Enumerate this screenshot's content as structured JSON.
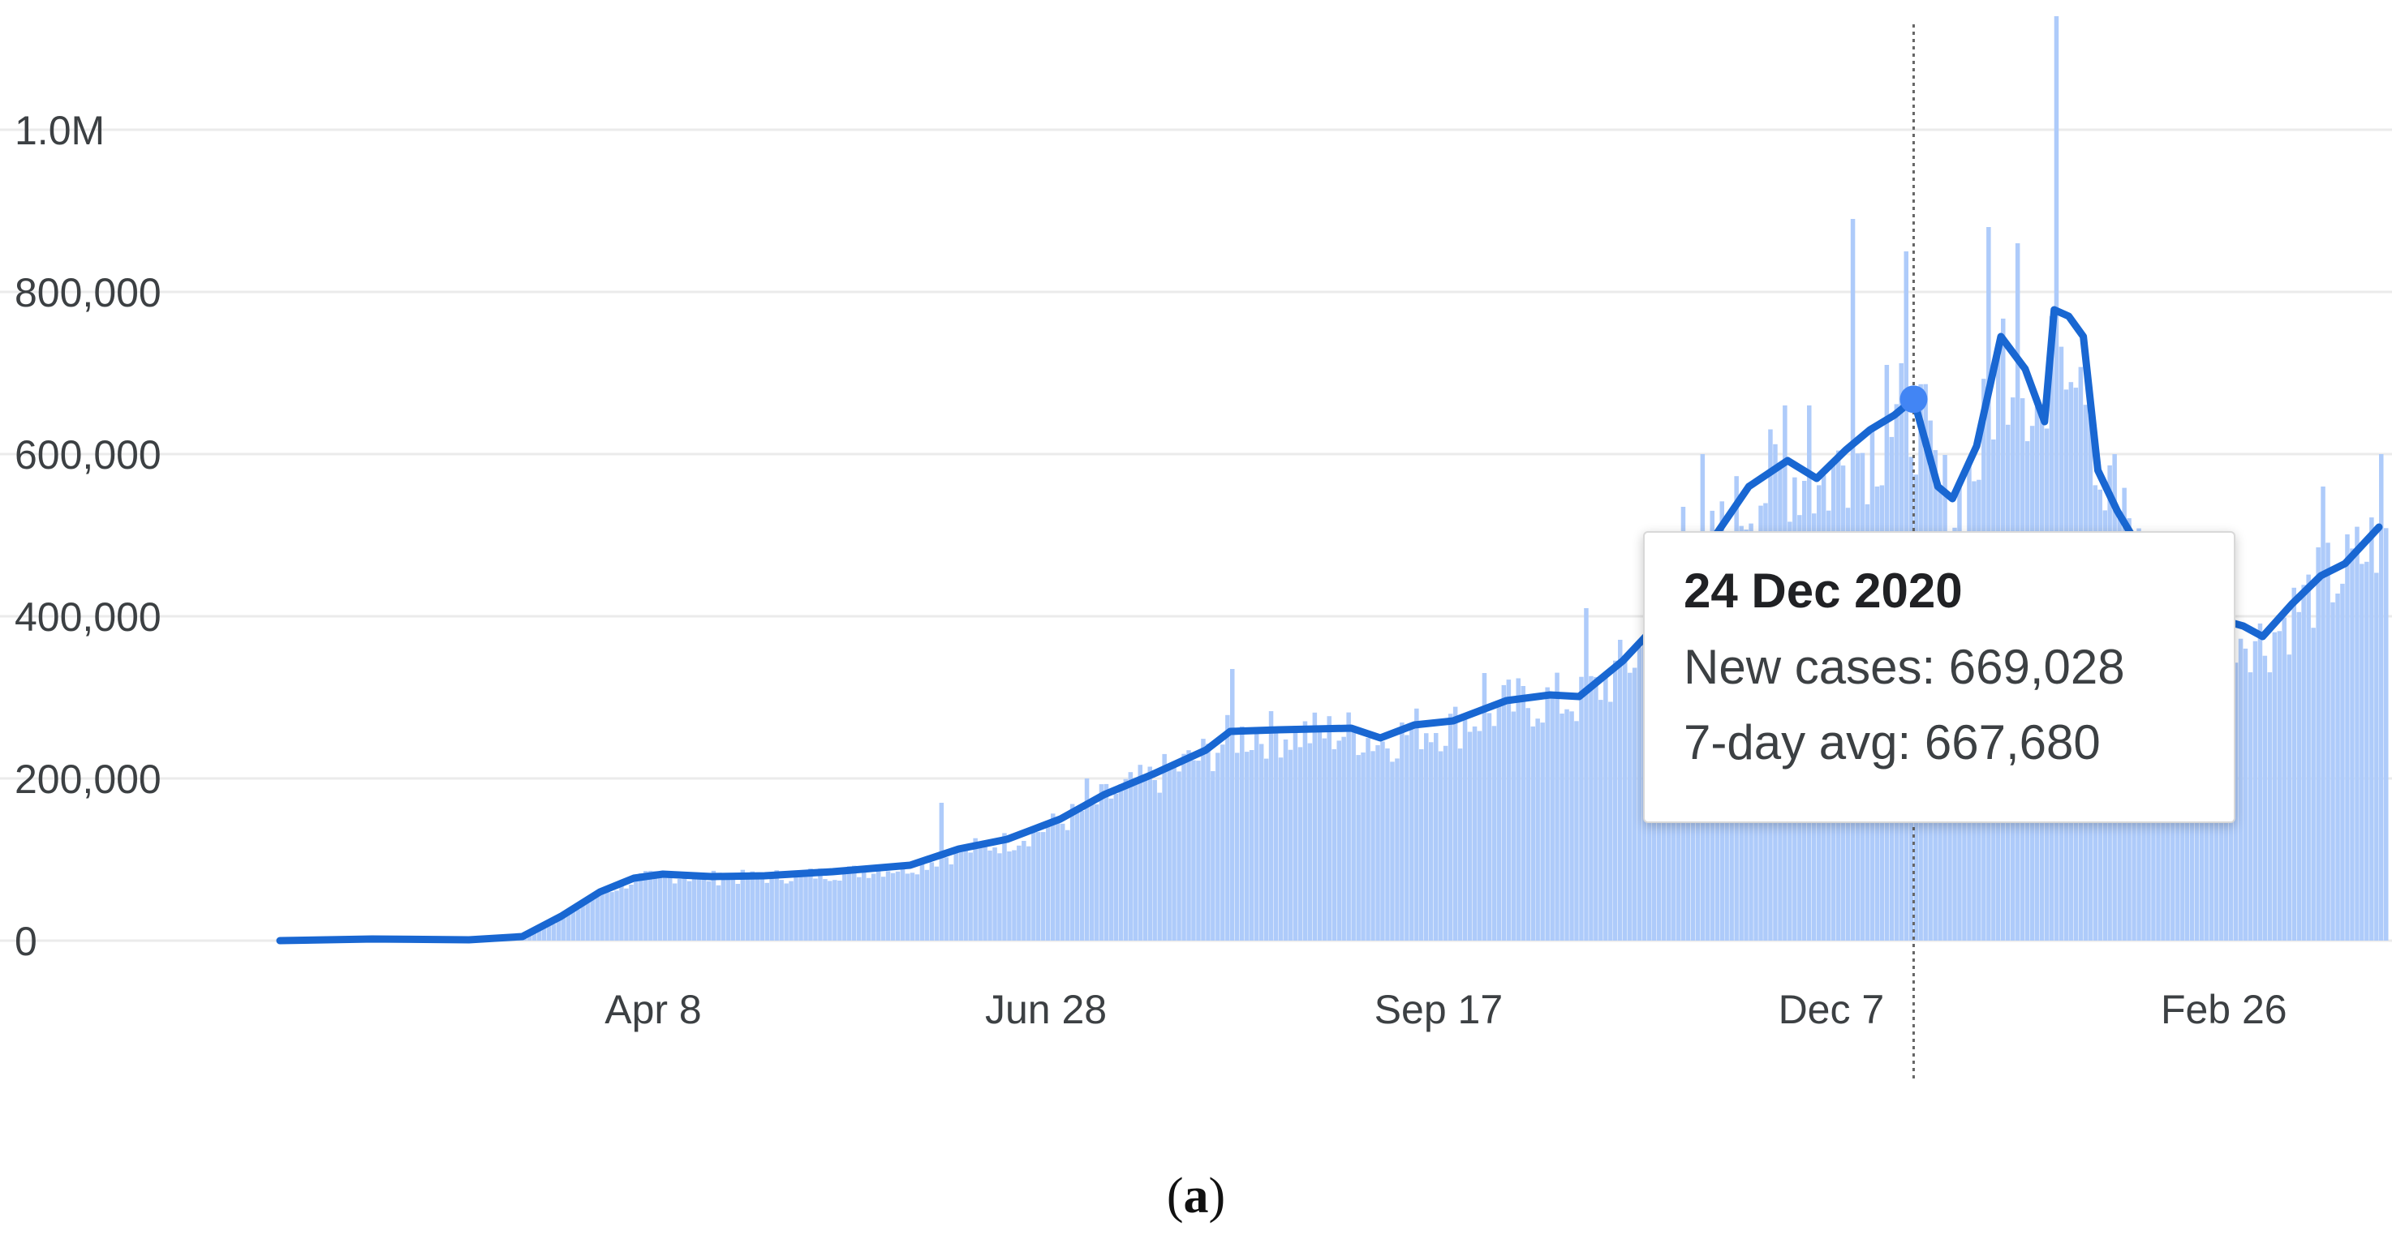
{
  "chart_data": {
    "type": "bar",
    "overlay": "line",
    "y_ticks": [
      {
        "value": 0,
        "label": "0"
      },
      {
        "value": 200000,
        "label": "200,000"
      },
      {
        "value": 400000,
        "label": "400,000"
      },
      {
        "value": 600000,
        "label": "600,000"
      },
      {
        "value": 800000,
        "label": "800,000"
      },
      {
        "value": 1000000,
        "label": "1.0M"
      }
    ],
    "x_ticks": [
      "Apr 8",
      "Jun 28",
      "Sep 17",
      "Dec 7",
      "Feb 26"
    ],
    "ylim": [
      0,
      1000000
    ],
    "grid": true,
    "colors": {
      "bars": "#aecbfa",
      "line": "#1967d2",
      "highlight_point": "#4285f4",
      "grid": "#ebebeb"
    },
    "series": [
      {
        "kind": "line",
        "points": [
          [
            "2020-01-22",
            0
          ],
          [
            "2020-02-10",
            2000
          ],
          [
            "2020-03-01",
            1000
          ],
          [
            "2020-03-12",
            5000
          ],
          [
            "2020-03-20",
            30000
          ],
          [
            "2020-03-28",
            60000
          ],
          [
            "2020-04-04",
            77000
          ],
          [
            "2020-04-10",
            82000
          ],
          [
            "2020-04-20",
            79000
          ],
          [
            "2020-05-01",
            80000
          ],
          [
            "2020-05-15",
            85000
          ],
          [
            "2020-05-31",
            93000
          ],
          [
            "2020-06-10",
            113000
          ],
          [
            "2020-06-20",
            125000
          ],
          [
            "2020-07-01",
            150000
          ],
          [
            "2020-07-10",
            180000
          ],
          [
            "2020-07-20",
            205000
          ],
          [
            "2020-07-31",
            235000
          ],
          [
            "2020-08-05",
            258000
          ],
          [
            "2020-08-15",
            260000
          ],
          [
            "2020-08-30",
            262000
          ],
          [
            "2020-09-05",
            250000
          ],
          [
            "2020-09-12",
            266000
          ],
          [
            "2020-09-20",
            271000
          ],
          [
            "2020-10-01",
            296000
          ],
          [
            "2020-10-10",
            303000
          ],
          [
            "2020-10-16",
            301000
          ],
          [
            "2020-10-25",
            345000
          ],
          [
            "2020-11-05",
            415000
          ],
          [
            "2020-11-12",
            490000
          ],
          [
            "2020-11-20",
            560000
          ],
          [
            "2020-11-28",
            592000
          ],
          [
            "2020-12-04",
            570000
          ],
          [
            "2020-12-10",
            605000
          ],
          [
            "2020-12-15",
            630000
          ],
          [
            "2020-12-20",
            648000
          ],
          [
            "2020-12-24",
            667680
          ],
          [
            "2020-12-29",
            560000
          ],
          [
            "2021-01-01",
            545000
          ],
          [
            "2021-01-06",
            610000
          ],
          [
            "2021-01-11",
            745000
          ],
          [
            "2021-01-16",
            705000
          ],
          [
            "2021-01-20",
            640000
          ],
          [
            "2021-01-22",
            778000
          ],
          [
            "2021-01-25",
            770000
          ],
          [
            "2021-01-28",
            745000
          ],
          [
            "2021-01-31",
            580000
          ],
          [
            "2021-02-04",
            530000
          ],
          [
            "2021-02-10",
            470000
          ],
          [
            "2021-02-17",
            440000
          ],
          [
            "2021-02-24",
            398000
          ],
          [
            "2021-03-02",
            388000
          ],
          [
            "2021-03-06",
            375000
          ],
          [
            "2021-03-12",
            415000
          ],
          [
            "2021-03-18",
            450000
          ],
          [
            "2021-03-23",
            465000
          ],
          [
            "2021-03-30",
            510000
          ]
        ]
      }
    ],
    "bar_spikes": [
      [
        "2020-06-06",
        170000
      ],
      [
        "2020-07-06",
        200000
      ],
      [
        "2020-08-05",
        335000
      ],
      [
        "2020-09-26",
        330000
      ],
      [
        "2020-10-17",
        410000
      ],
      [
        "2020-11-06",
        535000
      ],
      [
        "2020-11-10",
        600000
      ],
      [
        "2020-11-27",
        660000
      ],
      [
        "2020-12-02",
        660000
      ],
      [
        "2020-12-11",
        890000
      ],
      [
        "2020-12-18",
        710000
      ],
      [
        "2020-12-22",
        850000
      ],
      [
        "2021-01-08",
        880000
      ],
      [
        "2021-01-14",
        860000
      ],
      [
        "2021-01-22",
        1140000
      ],
      [
        "2021-02-03",
        600000
      ],
      [
        "2021-03-18",
        560000
      ],
      [
        "2021-03-30",
        600000
      ]
    ],
    "highlight": {
      "date": "2020-12-24",
      "value": 667680
    }
  },
  "tooltip": {
    "date": "24 Dec 2020",
    "new_cases": "New cases: 669,028",
    "avg": "7-day avg: 667,680"
  },
  "caption": {
    "open": "(",
    "label": "a",
    "close": ")"
  }
}
